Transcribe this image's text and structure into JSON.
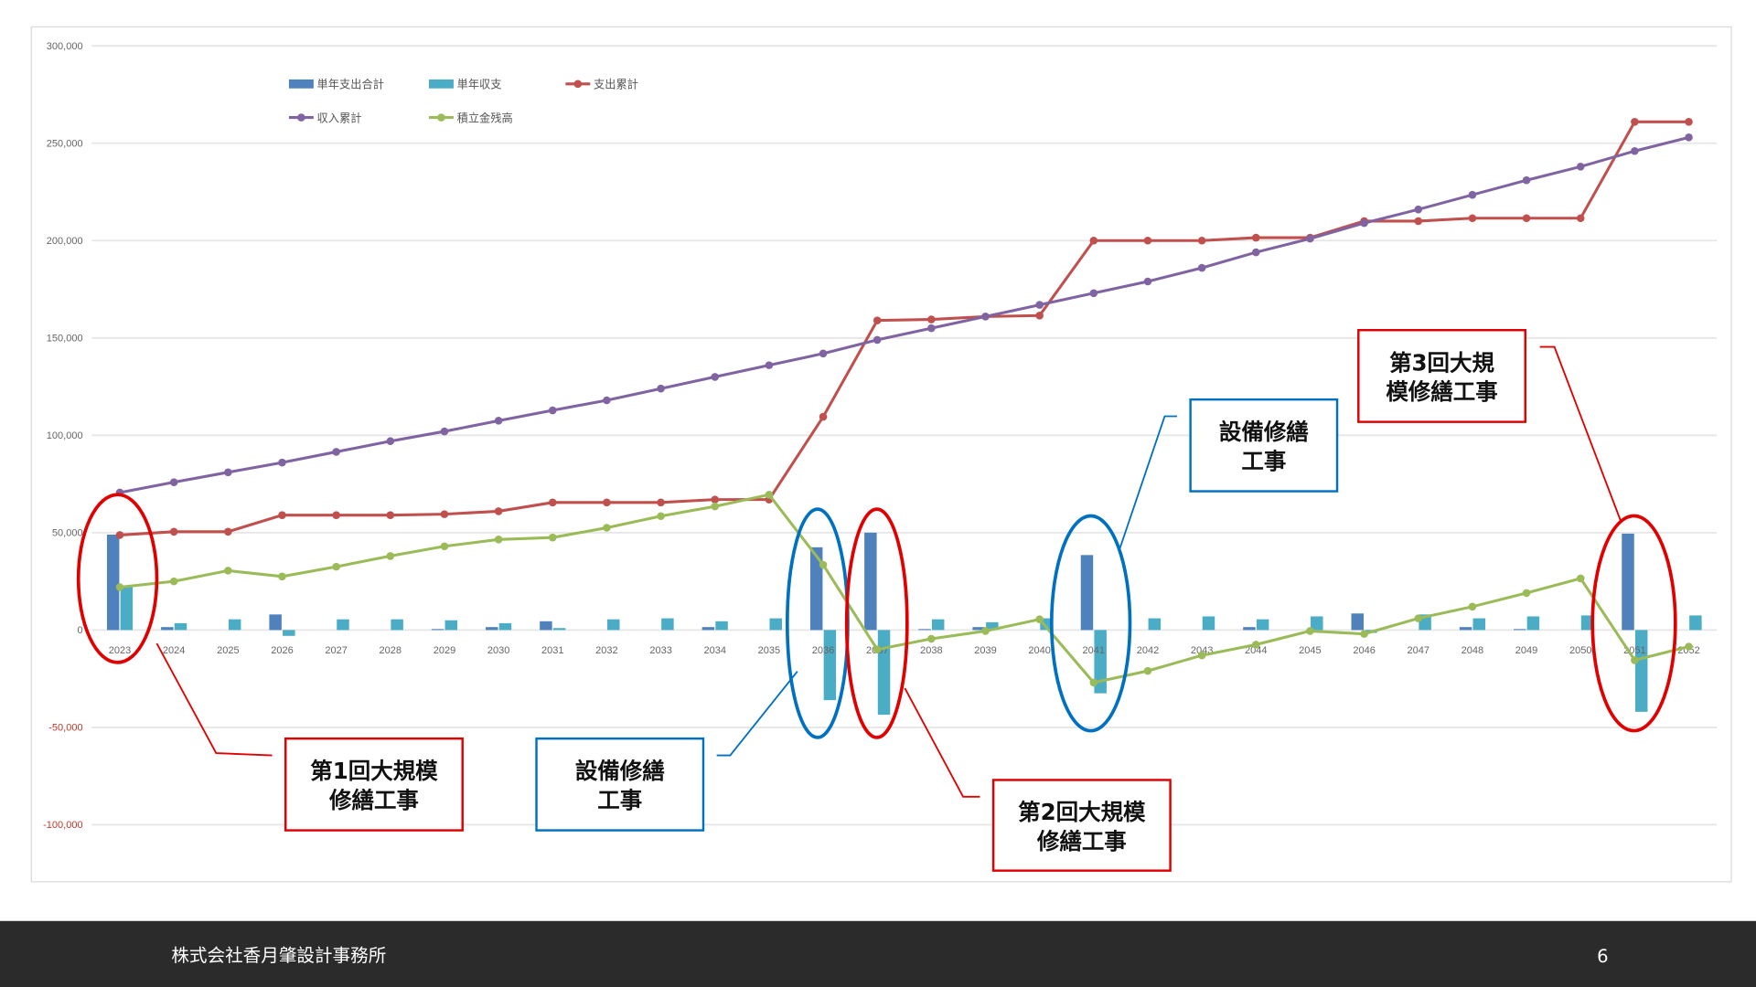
{
  "chart_data": {
    "type": "bar+line",
    "title": "",
    "xlabel": "",
    "ylabel": "",
    "ylim": [
      -100000,
      300000
    ],
    "yticks": [
      300000,
      250000,
      200000,
      150000,
      100000,
      50000,
      0,
      -50000,
      -100000
    ],
    "ytick_labels": [
      "300,000",
      "250,000",
      "200,000",
      "150,000",
      "100,000",
      "50,000",
      "0",
      "-50,000",
      "-100,000"
    ],
    "grid": true,
    "legend_position": "top-left",
    "categories": [
      "2023",
      "2024",
      "2025",
      "2026",
      "2027",
      "2028",
      "2029",
      "2030",
      "2031",
      "2032",
      "2033",
      "2034",
      "2035",
      "2036",
      "2037",
      "2038",
      "2039",
      "2040",
      "2041",
      "2042",
      "2043",
      "2044",
      "2045",
      "2046",
      "2047",
      "2048",
      "2049",
      "2050",
      "2051",
      "2052"
    ],
    "series": [
      {
        "name": "単年支出合計",
        "type": "bar",
        "color": "#4f81bd",
        "values": [
          49000,
          1500,
          0,
          8000,
          0,
          0,
          500,
          1500,
          4500,
          0,
          0,
          1500,
          0,
          42500,
          50000,
          500,
          1500,
          0,
          38500,
          0,
          0,
          1500,
          0,
          8500,
          0,
          1500,
          500,
          0,
          49500,
          0
        ]
      },
      {
        "name": "単年収支",
        "type": "bar",
        "color": "#4bacc6",
        "values": [
          22000,
          3500,
          5500,
          -3000,
          5500,
          5500,
          5000,
          3500,
          1000,
          5500,
          6000,
          4500,
          6000,
          -36000,
          -43500,
          5500,
          4000,
          6000,
          -32500,
          6000,
          7000,
          5500,
          7000,
          -1500,
          8000,
          6000,
          7000,
          7500,
          -42000,
          7500
        ]
      },
      {
        "name": "支出累計",
        "type": "line",
        "color": "#c0504d",
        "values": [
          48800,
          50500,
          50500,
          59000,
          59000,
          59000,
          59500,
          61000,
          65500,
          65500,
          65500,
          67000,
          67000,
          109500,
          159000,
          159500,
          161000,
          161500,
          200000,
          200000,
          200000,
          201500,
          201500,
          210000,
          210000,
          211500,
          211500,
          211500,
          261000,
          261000
        ]
      },
      {
        "name": "収入累計",
        "type": "line",
        "color": "#8064a2",
        "values": [
          70600,
          75900,
          81000,
          86000,
          91500,
          97000,
          102000,
          107500,
          112800,
          118000,
          124000,
          130000,
          136000,
          142000,
          149000,
          155000,
          161000,
          167000,
          173000,
          179000,
          186000,
          194000,
          201000,
          209000,
          216000,
          223500,
          231000,
          238000,
          246000,
          253000
        ]
      },
      {
        "name": "積立金残高",
        "type": "line",
        "color": "#9bbb59",
        "values": [
          22000,
          25000,
          30500,
          27500,
          32500,
          38000,
          43000,
          46500,
          47500,
          52500,
          58500,
          63500,
          69500,
          33500,
          -10000,
          -4500,
          -500,
          5500,
          -27000,
          -21000,
          -13000,
          -7500,
          -500,
          -2000,
          6000,
          12000,
          19000,
          26500,
          -15500,
          -8500
        ]
      }
    ],
    "annotations": [
      {
        "lines": [
          "第1回大規模",
          "修繕工事"
        ],
        "color": "#e00000",
        "year": "2023"
      },
      {
        "lines": [
          "設備修繕",
          "工事"
        ],
        "color": "#0070c0",
        "year": "2036"
      },
      {
        "lines": [
          "第2回大規模",
          "修繕工事"
        ],
        "color": "#e00000",
        "year": "2037"
      },
      {
        "lines": [
          "設備修繕",
          "工事"
        ],
        "color": "#0070c0",
        "year": "2041"
      },
      {
        "lines": [
          "第3回大規",
          "模修繕工事"
        ],
        "color": "#e00000",
        "year": "2051"
      }
    ]
  },
  "footer": {
    "company": "株式会社香月肇設計事務所",
    "page_number": "6"
  }
}
